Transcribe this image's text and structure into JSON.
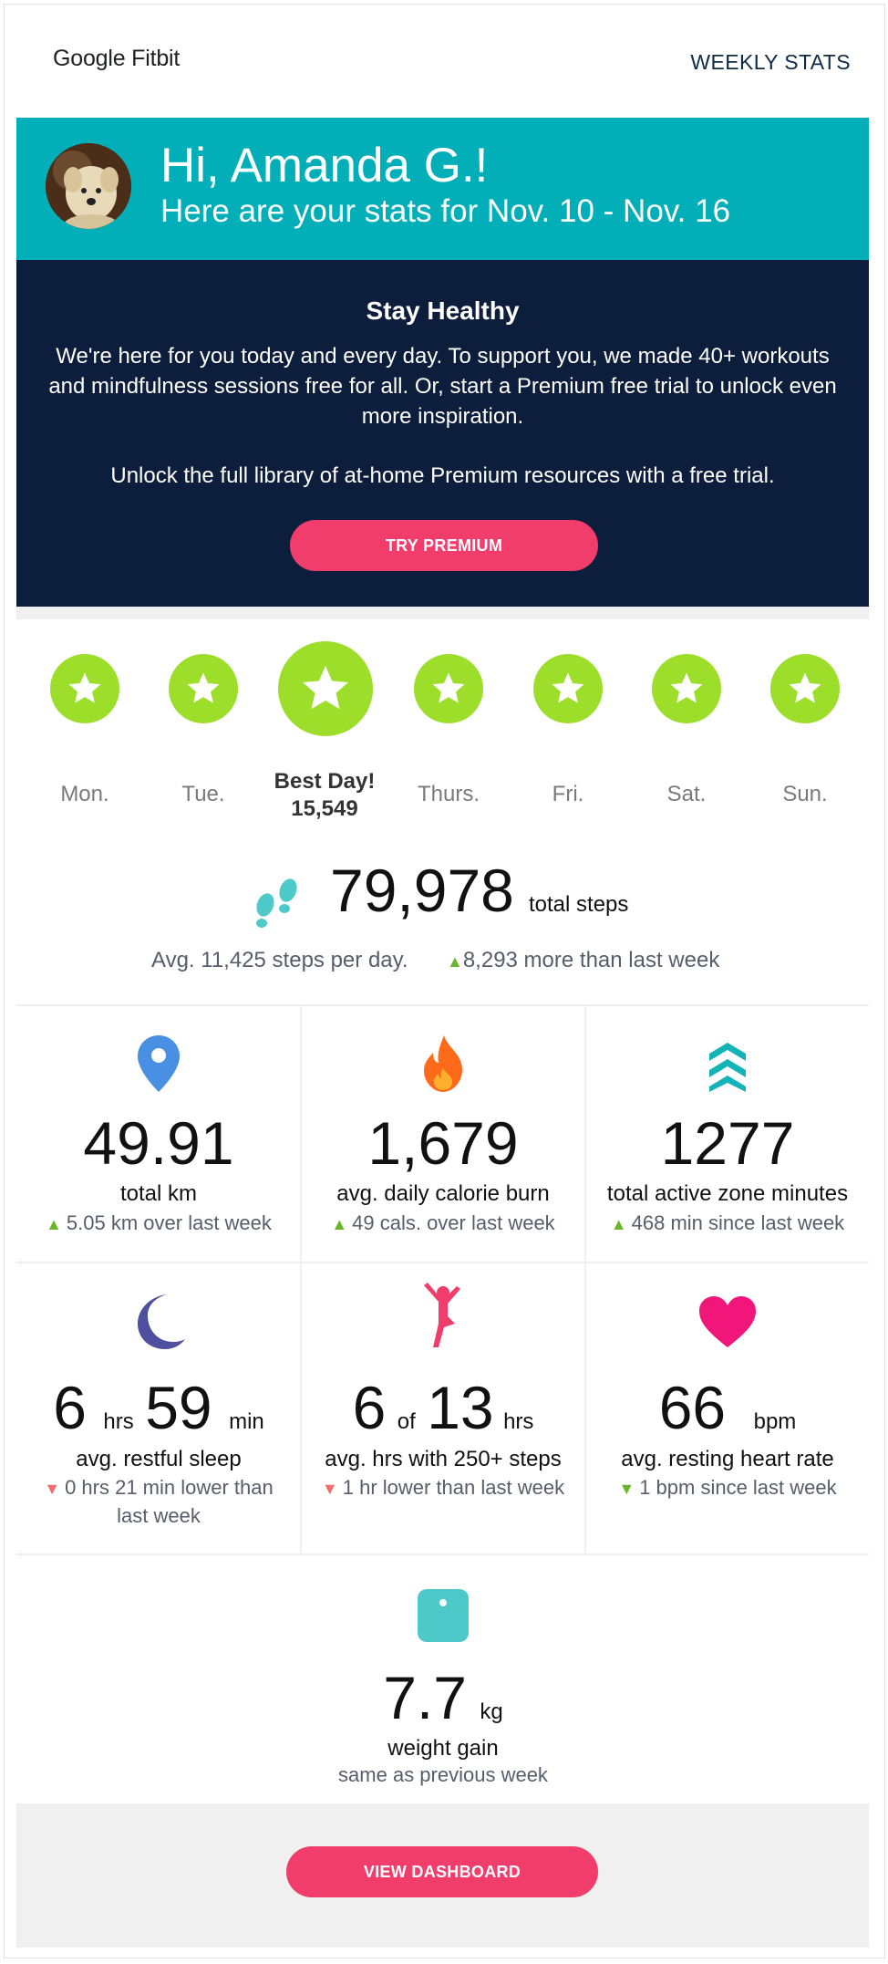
{
  "header": {
    "logo": "Google Fitbit",
    "link": "WEEKLY STATS"
  },
  "hero": {
    "greeting": "Hi, Amanda G.!",
    "subtitle": "Here are your stats for Nov. 10 - Nov. 16"
  },
  "promo": {
    "title": "Stay Healthy",
    "body": "We're here for you today and every day. To support you, we made 40+ workouts and mindfulness sessions free for all. Or, start a Premium free trial to unlock even more inspiration.",
    "body2": "Unlock the full library of at-home Premium resources with a free trial.",
    "button": "TRY PREMIUM"
  },
  "days": {
    "mon": "Mon.",
    "tue": "Tue.",
    "best_title": "Best Day!",
    "best_steps": "15,549",
    "thu": "Thurs.",
    "fri": "Fri.",
    "sat": "Sat.",
    "sun": "Sun."
  },
  "steps": {
    "total": "79,978",
    "unit": "total steps",
    "avg": "Avg. 11,425 steps per day.",
    "more": "8,293 more than last week"
  },
  "stats": {
    "km": {
      "value": "49.91",
      "label": "total km",
      "change": "5.05 km over last week"
    },
    "calories": {
      "value": "1,679",
      "label": "avg. daily calorie burn",
      "change": "49 cals. over last week"
    },
    "azm": {
      "value": "1277",
      "label": "total active zone minutes",
      "change": "468 min since last week"
    },
    "sleep": {
      "hrs": "6",
      "hrs_unit": "hrs",
      "min": "59",
      "min_unit": "min",
      "label": "avg. restful sleep",
      "change": "0 hrs 21 min lower than last week"
    },
    "hourly": {
      "value": "6",
      "of": "of",
      "total": "13",
      "unit": "hrs",
      "label": "avg. hrs with 250+ steps",
      "change": "1 hr lower than last week"
    },
    "heart": {
      "value": "66",
      "unit": "bpm",
      "label": "avg. resting heart rate",
      "change": "1 bpm since last week"
    },
    "weight": {
      "value": "7.7",
      "unit": "kg",
      "label": "weight gain",
      "change": "same as previous week"
    }
  },
  "footer": {
    "button": "VIEW DASHBOARD"
  },
  "colors": {
    "teal": "#02afb8",
    "navy": "#0d1e3d",
    "pink": "#f03d6b",
    "lime": "#9cde2a"
  }
}
